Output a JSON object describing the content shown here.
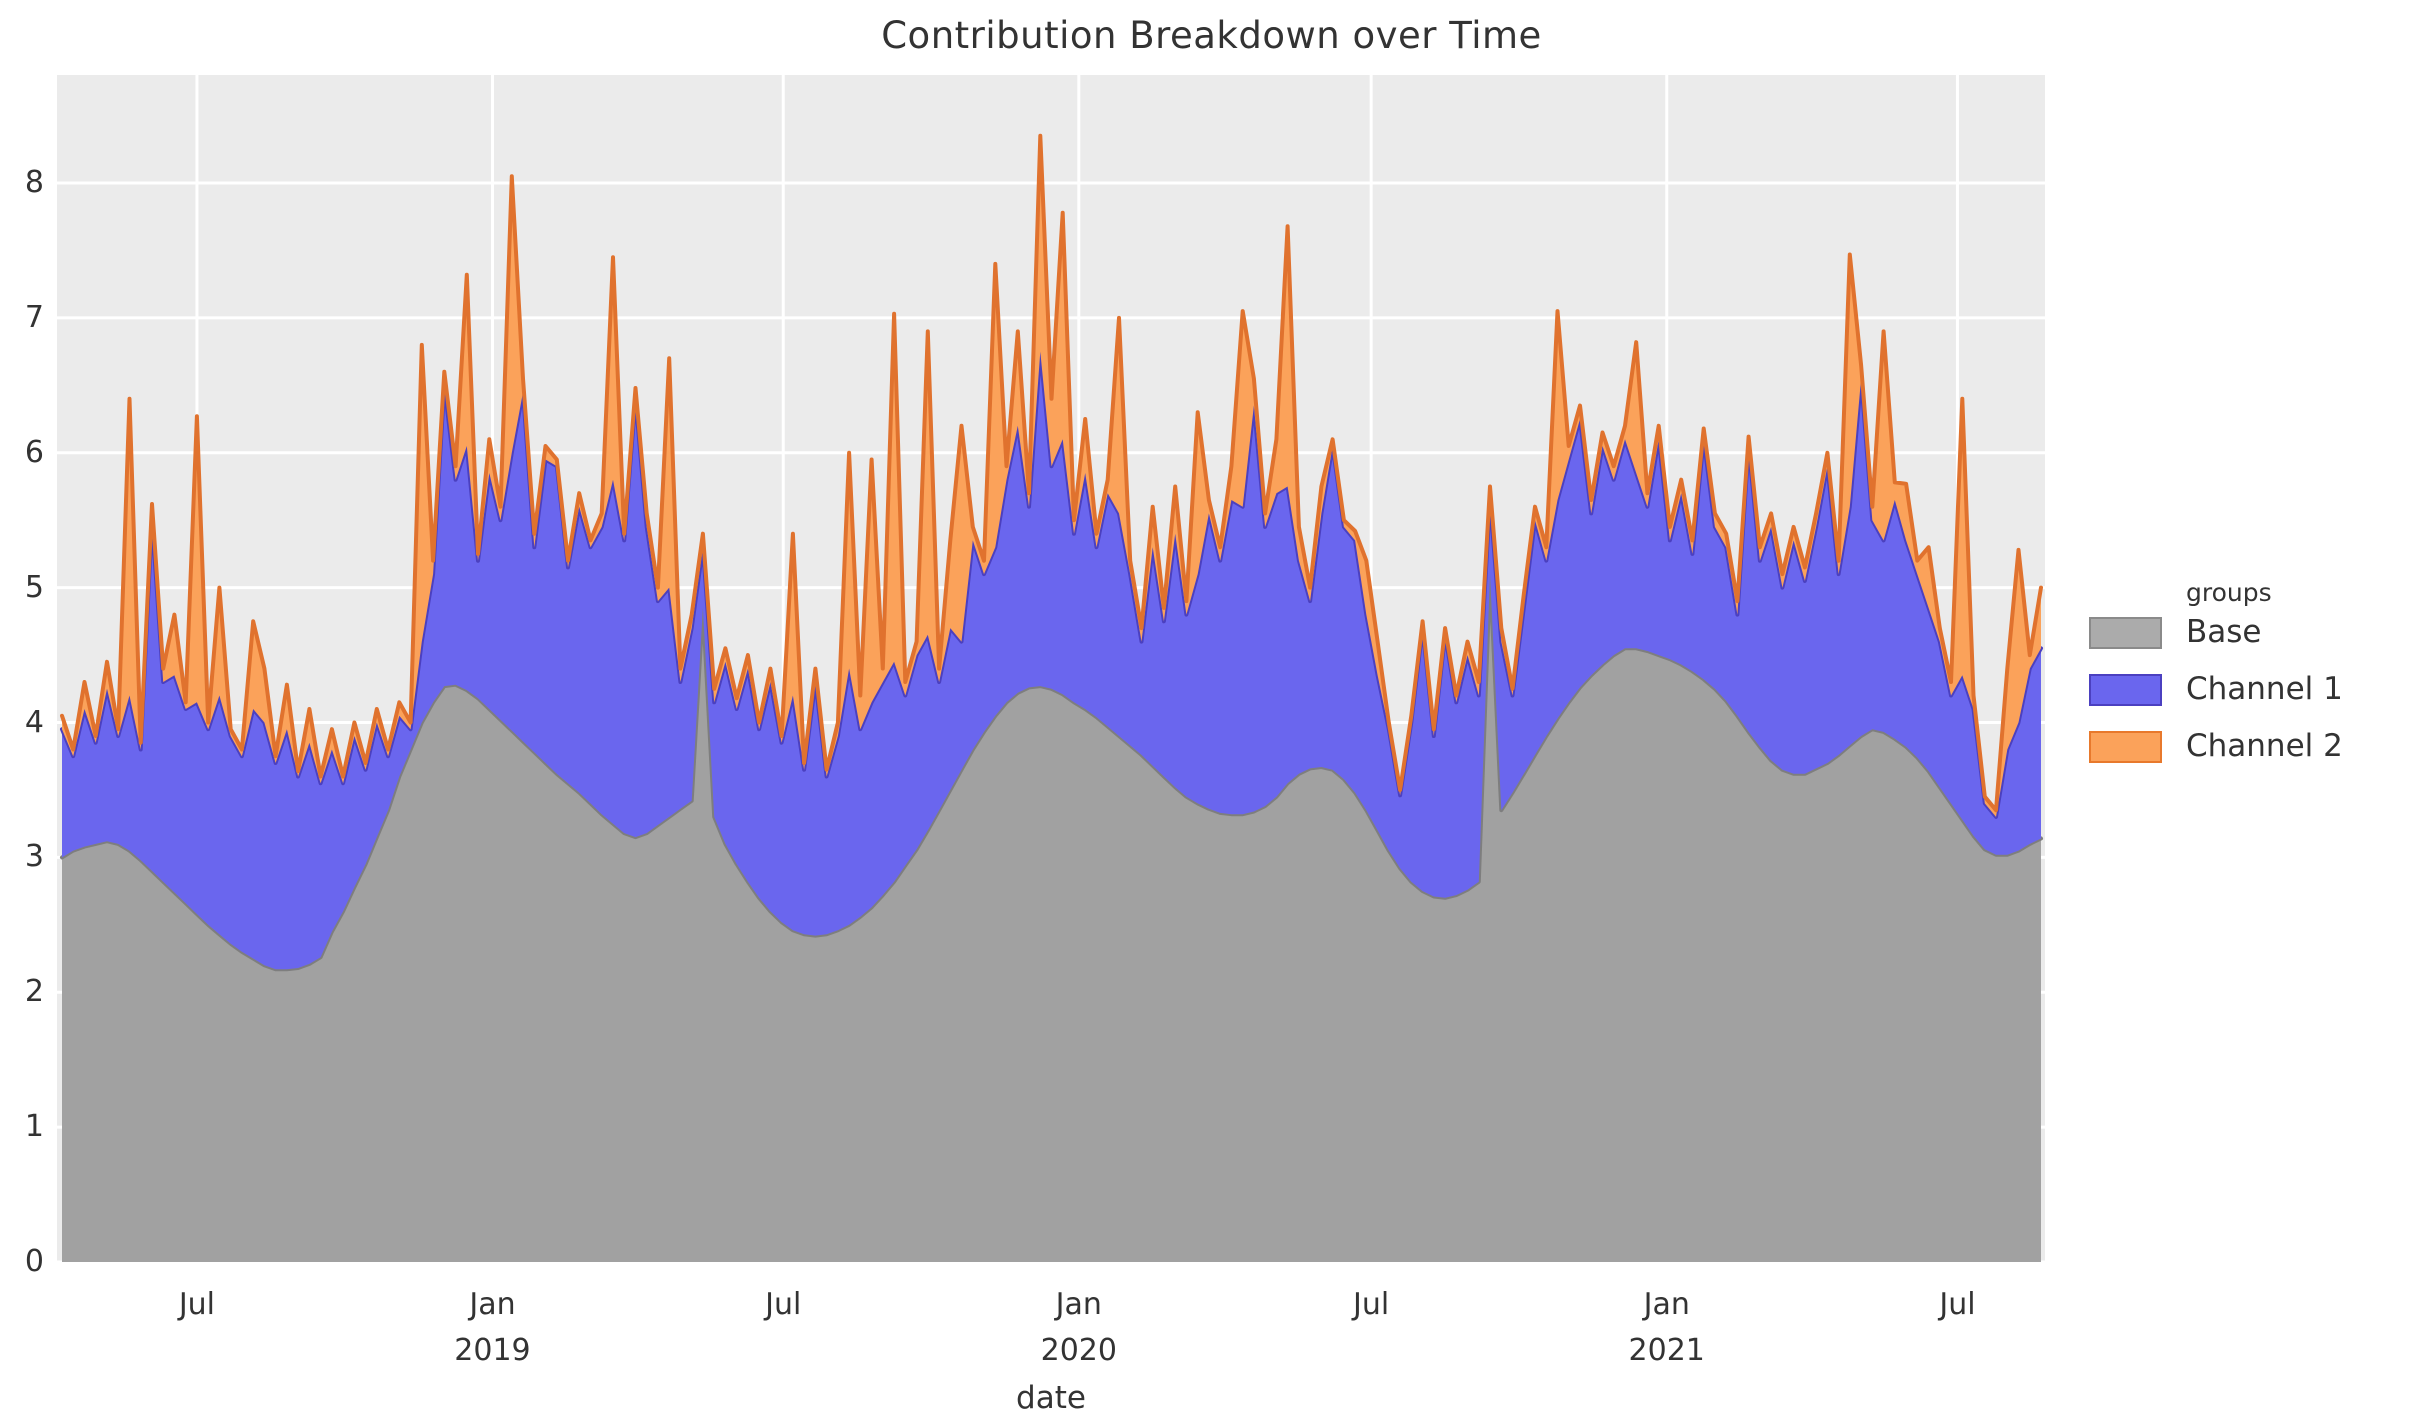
{
  "title": "Contribution Breakdown over Time",
  "axes": {
    "x_label": "date",
    "y_tick_labels": [
      "0",
      "1",
      "2",
      "3",
      "4",
      "5",
      "6",
      "7",
      "8"
    ],
    "x_ticks": [
      {
        "label": "Jul",
        "year": "",
        "day": 84
      },
      {
        "label": "Jan",
        "year": "2019",
        "day": 268
      },
      {
        "label": "Jul",
        "year": "",
        "day": 449
      },
      {
        "label": "Jan",
        "year": "2020",
        "day": 633
      },
      {
        "label": "Jul",
        "year": "",
        "day": 815
      },
      {
        "label": "Jan",
        "year": "2021",
        "day": 999
      },
      {
        "label": "Jul",
        "year": "",
        "day": 1180
      }
    ]
  },
  "legend": {
    "title": "groups",
    "items": [
      {
        "label": "Base",
        "fill": "#ababab",
        "stroke": "#8a8a8a"
      },
      {
        "label": "Channel 1",
        "fill": "#6a66ee",
        "stroke": "#4b40c0"
      },
      {
        "label": "Channel 2",
        "fill": "#fba25a",
        "stroke": "#e8792c"
      }
    ]
  },
  "colors": {
    "panel_background": "#ebebeb",
    "grid": "#ffffff",
    "outer_background": "#ffffff",
    "text": "#333333"
  },
  "chart_data": {
    "type": "area",
    "stacked": true,
    "title": "Contribution Breakdown over Time",
    "xlabel": "date",
    "ylabel": "",
    "ylim": [
      0,
      8.75
    ],
    "grid": true,
    "legend_position": "right",
    "x_start_date": "2018-04-08",
    "x_step_days": 7,
    "x_total_days": 1232,
    "n_points": 177,
    "series": [
      {
        "name": "Base",
        "fill": "#a1a1a1",
        "stroke": "#7e7e7e",
        "values": [
          3.0,
          3.05,
          3.08,
          3.1,
          3.12,
          3.1,
          3.05,
          2.98,
          2.9,
          2.82,
          2.74,
          2.66,
          2.58,
          2.5,
          2.43,
          2.36,
          2.3,
          2.25,
          2.2,
          2.17,
          2.17,
          2.18,
          2.21,
          2.26,
          2.45,
          2.6,
          2.78,
          2.95,
          3.15,
          3.35,
          3.6,
          3.8,
          4.0,
          4.15,
          4.27,
          4.28,
          4.24,
          4.18,
          4.1,
          4.02,
          3.94,
          3.86,
          3.78,
          3.7,
          3.62,
          3.55,
          3.48,
          3.4,
          3.32,
          3.25,
          3.18,
          3.15,
          3.18,
          3.24,
          3.3,
          3.36,
          3.42,
          4.85,
          3.3,
          3.1,
          2.95,
          2.82,
          2.7,
          2.6,
          2.52,
          2.46,
          2.43,
          2.42,
          2.43,
          2.46,
          2.5,
          2.56,
          2.63,
          2.72,
          2.82,
          2.94,
          3.06,
          3.2,
          3.35,
          3.5,
          3.65,
          3.8,
          3.93,
          4.05,
          4.15,
          4.22,
          4.26,
          4.27,
          4.25,
          4.21,
          4.15,
          4.1,
          4.04,
          3.97,
          3.9,
          3.83,
          3.76,
          3.68,
          3.6,
          3.52,
          3.45,
          3.4,
          3.36,
          3.33,
          3.32,
          3.32,
          3.34,
          3.38,
          3.45,
          3.55,
          3.62,
          3.66,
          3.67,
          3.65,
          3.58,
          3.48,
          3.35,
          3.2,
          3.05,
          2.92,
          2.82,
          2.75,
          2.71,
          2.7,
          2.72,
          2.76,
          2.82,
          5.1,
          3.35,
          3.48,
          3.62,
          3.76,
          3.9,
          4.03,
          4.15,
          4.26,
          4.35,
          4.43,
          4.5,
          4.55,
          4.55,
          4.53,
          4.5,
          4.47,
          4.43,
          4.38,
          4.32,
          4.25,
          4.16,
          4.05,
          3.93,
          3.82,
          3.72,
          3.65,
          3.62,
          3.62,
          3.66,
          3.7,
          3.76,
          3.83,
          3.9,
          3.95,
          3.93,
          3.88,
          3.82,
          3.74,
          3.64,
          3.52,
          3.4,
          3.28,
          3.16,
          3.06,
          3.02,
          3.02,
          3.05,
          3.1,
          3.14
        ]
      },
      {
        "name": "Channel 1",
        "fill": "#6a66ee",
        "stroke": "#4b40c0",
        "values": [
          0.95,
          0.7,
          1.02,
          0.75,
          1.13,
          0.8,
          1.15,
          0.82,
          2.6,
          1.48,
          1.61,
          1.44,
          1.57,
          1.45,
          1.77,
          1.54,
          1.45,
          1.85,
          1.8,
          1.53,
          1.78,
          1.42,
          1.64,
          1.29,
          1.35,
          0.95,
          1.12,
          0.7,
          0.85,
          0.4,
          0.45,
          0.15,
          0.6,
          0.95,
          2.23,
          1.52,
          1.81,
          1.02,
          1.75,
          1.48,
          2.06,
          2.59,
          1.52,
          2.25,
          2.28,
          1.6,
          2.12,
          1.9,
          2.13,
          2.55,
          2.17,
          3.25,
          2.27,
          1.66,
          1.7,
          0.94,
          1.28,
          0.45,
          0.85,
          1.35,
          1.15,
          1.58,
          1.25,
          1.7,
          1.33,
          1.74,
          1.22,
          1.88,
          1.17,
          1.44,
          1.9,
          1.39,
          1.52,
          1.58,
          1.63,
          1.26,
          1.44,
          1.45,
          0.95,
          1.2,
          0.95,
          1.55,
          1.17,
          1.25,
          1.65,
          1.98,
          1.34,
          2.48,
          1.65,
          1.89,
          1.25,
          1.75,
          1.26,
          1.73,
          1.65,
          1.27,
          0.84,
          1.62,
          1.15,
          1.88,
          1.35,
          1.7,
          2.19,
          1.87,
          2.33,
          2.28,
          3.01,
          2.07,
          2.25,
          2.2,
          1.58,
          1.24,
          1.88,
          2.4,
          1.87,
          1.87,
          1.45,
          1.15,
          0.9,
          0.54,
          1.18,
          1.95,
          1.19,
          1.95,
          1.43,
          1.74,
          1.38,
          0.55,
          1.25,
          0.72,
          1.23,
          1.74,
          1.3,
          1.62,
          1.8,
          1.99,
          1.2,
          1.62,
          1.3,
          1.55,
          1.3,
          1.07,
          1.6,
          0.88,
          1.27,
          0.87,
          1.78,
          1.2,
          1.14,
          0.75,
          2.12,
          1.38,
          1.73,
          1.35,
          1.73,
          1.43,
          1.79,
          2.2,
          1.34,
          1.77,
          2.65,
          1.55,
          1.42,
          1.77,
          1.53,
          1.36,
          1.21,
          1.08,
          0.8,
          1.07,
          0.94,
          0.34,
          0.28,
          0.78,
          0.95,
          1.3,
          1.41
        ]
      },
      {
        "name": "Channel 2",
        "fill": "#fba25a",
        "stroke": "#e0722e",
        "values": [
          0.1,
          0.05,
          0.2,
          0.05,
          0.2,
          0.05,
          2.2,
          0.05,
          0.12,
          0.1,
          0.45,
          0.05,
          2.12,
          0.05,
          0.8,
          0.05,
          0.05,
          0.65,
          0.4,
          0.05,
          0.33,
          0.04,
          0.25,
          0.05,
          0.15,
          0.05,
          0.1,
          0.05,
          0.1,
          0.05,
          0.1,
          0.05,
          2.2,
          0.1,
          0.1,
          0.1,
          1.27,
          0.05,
          0.25,
          0.1,
          2.05,
          0.1,
          0.1,
          0.1,
          0.05,
          0.05,
          0.1,
          0.05,
          0.1,
          1.65,
          0.05,
          0.08,
          0.1,
          0.1,
          1.7,
          0.1,
          0.1,
          0.1,
          0.1,
          0.1,
          0.08,
          0.1,
          0.05,
          0.1,
          0.05,
          1.2,
          0.05,
          0.1,
          0.05,
          0.1,
          1.6,
          0.25,
          1.8,
          0.1,
          2.58,
          0.1,
          0.1,
          2.25,
          0.1,
          0.65,
          1.6,
          0.1,
          0.1,
          2.1,
          0.1,
          0.7,
          0.1,
          1.6,
          0.5,
          1.68,
          0.1,
          0.4,
          0.1,
          0.1,
          1.45,
          0.1,
          0.1,
          0.3,
          0.1,
          0.35,
          0.1,
          1.2,
          0.1,
          0.1,
          0.25,
          1.45,
          0.2,
          0.1,
          0.4,
          1.93,
          0.25,
          0.1,
          0.2,
          0.05,
          0.05,
          0.07,
          0.4,
          0.25,
          0.05,
          0.04,
          0.05,
          0.05,
          0.05,
          0.05,
          0.05,
          0.1,
          0.1,
          0.1,
          0.1,
          0.05,
          0.1,
          0.1,
          0.1,
          1.4,
          0.1,
          0.1,
          0.1,
          0.1,
          0.1,
          0.1,
          0.97,
          0.1,
          0.1,
          0.1,
          0.1,
          0.1,
          0.08,
          0.1,
          0.1,
          0.1,
          0.07,
          0.1,
          0.1,
          0.1,
          0.1,
          0.1,
          0.1,
          0.1,
          0.1,
          1.87,
          0.1,
          0.1,
          1.55,
          0.13,
          0.42,
          0.1,
          0.45,
          0.1,
          0.1,
          2.05,
          0.1,
          0.05,
          0.05,
          0.6,
          1.28,
          0.1,
          0.45
        ]
      }
    ]
  }
}
